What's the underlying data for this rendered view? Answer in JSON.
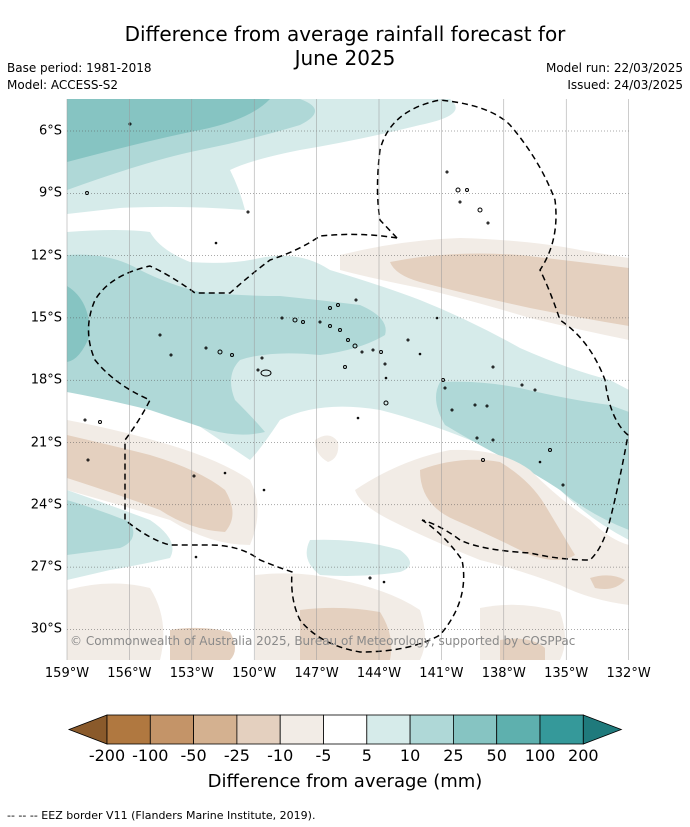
{
  "header": {
    "title_line1": "Difference from average rainfall forecast for",
    "title_line2": "June 2025",
    "base_period": "Base period: 1981-2018",
    "model": "Model: ACCESS-S2",
    "model_run": "Model run: 22/03/2025",
    "issued": "Issued: 24/03/2025"
  },
  "map": {
    "latitude_labels": [
      "6°S",
      "9°S",
      "12°S",
      "15°S",
      "18°S",
      "21°S",
      "24°S",
      "27°S",
      "30°S"
    ],
    "longitude_labels": [
      "159°W",
      "156°W",
      "153°W",
      "150°W",
      "147°W",
      "144°W",
      "141°W",
      "138°W",
      "135°W",
      "132°W"
    ],
    "copyright": "© Commonwealth of Australia 2025, Bureau of Meteorology, supported by COSPPac",
    "grid": true,
    "eez_border": "dashed black"
  },
  "colorbar": {
    "title": "Difference from average (mm)",
    "tick_labels": [
      "-200",
      "-100",
      "-50",
      "-25",
      "-10",
      "-5",
      "5",
      "10",
      "25",
      "50",
      "100",
      "200"
    ],
    "colors": [
      "#8a5a2b",
      "#b07840",
      "#c49468",
      "#d4b190",
      "#e4d0bf",
      "#f2ece6",
      "#ffffff",
      "#d6ebea",
      "#afd8d7",
      "#86c4c2",
      "#5eb0ae",
      "#35999a",
      "#1f7a7c"
    ]
  },
  "footnote": "-- -- -- EEZ border V11 (Flanders Marine Institute, 2019)."
}
